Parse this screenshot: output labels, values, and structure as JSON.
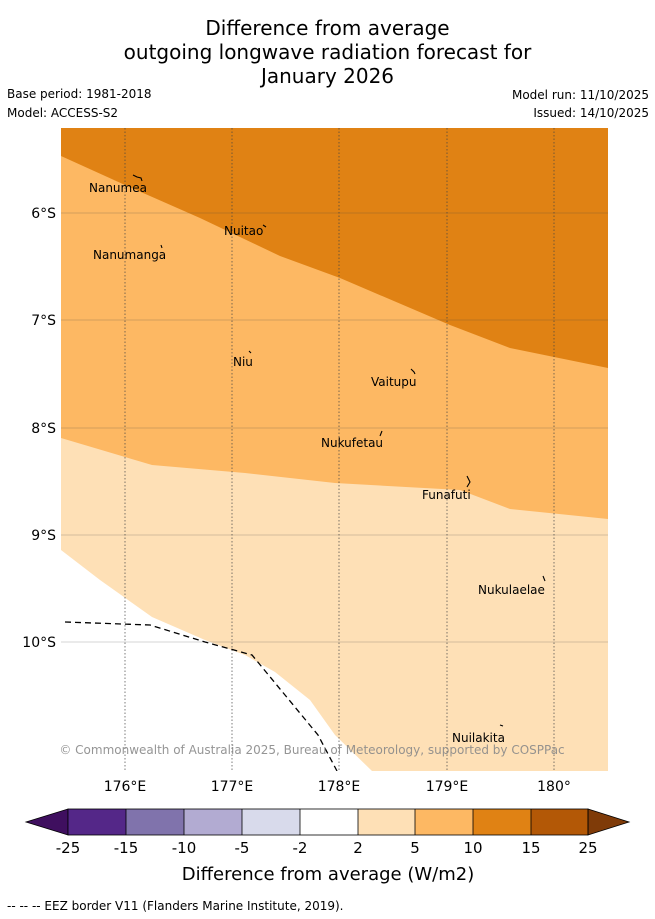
{
  "title": {
    "line1": "Difference from average",
    "line2": "outgoing longwave radiation forecast for",
    "line3": "January 2026"
  },
  "info": {
    "base_period": "Base period: 1981-2018",
    "model": "Model: ACCESS-S2",
    "model_run": "Model run: 11/10/2025",
    "issued": "Issued: 14/10/2025"
  },
  "map": {
    "lat_labels": [
      "6°S",
      "7°S",
      "8°S",
      "9°S",
      "10°S"
    ],
    "lon_labels": [
      "176°E",
      "177°E",
      "178°E",
      "179°E",
      "180°"
    ],
    "places": [
      "Nanumea",
      "Nuitao",
      "Nanumanga",
      "Niu",
      "Vaitupu",
      "Nukufetau",
      "Funafuti",
      "Nukulaelae",
      "Nuilakita"
    ],
    "attribution": "© Commonwealth of Australia 2025, Bureau of Meteorology, supported by COSPPac",
    "zone_colors": {
      "c10_15": "#e08214",
      "c5_10": "#fdb863",
      "c2_5": "#fee0b6",
      "cn2_2": "#ffffff"
    }
  },
  "colorbar": {
    "ticks": [
      "-25",
      "-15",
      "-10",
      "-5",
      "-2",
      "2",
      "5",
      "10",
      "15",
      "25"
    ],
    "colors": [
      "#3f0f5f",
      "#542788",
      "#8073ac",
      "#b2abd2",
      "#d8daeb",
      "#ffffff",
      "#fee0b6",
      "#fdb863",
      "#e08214",
      "#b35806",
      "#7f3b08"
    ],
    "label": "Difference from average (W/m2)"
  },
  "legend": {
    "eez": "--  --  -- EEZ border V11 (Flanders Marine Institute, 2019)."
  }
}
